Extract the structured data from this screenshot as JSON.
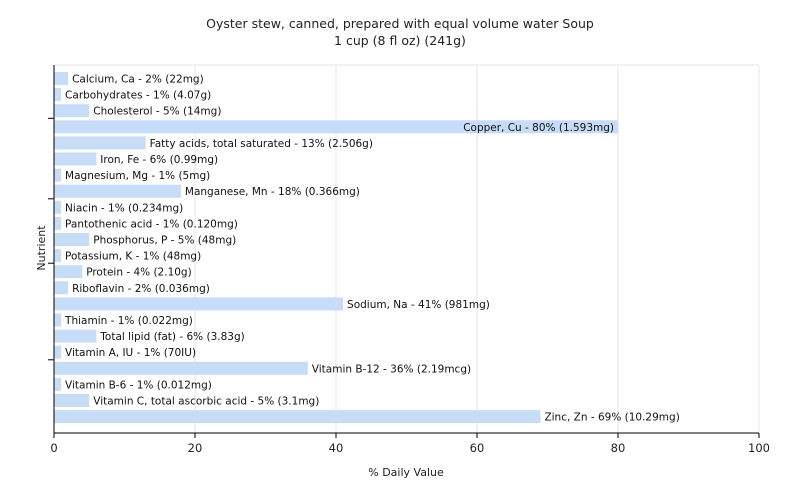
{
  "chart_data": {
    "type": "bar",
    "orientation": "horizontal",
    "title": "Oyster stew, canned, prepared with equal volume water Soup",
    "subtitle": "1 cup (8 fl oz) (241g)",
    "xlabel": "% Daily Value",
    "ylabel": "Nutrient",
    "xlim": [
      0,
      100
    ],
    "xticks": [
      0,
      20,
      40,
      60,
      80,
      100
    ],
    "grid": true,
    "bar_color": "#c6dcf7",
    "categories": [
      "Calcium, Ca",
      "Carbohydrates",
      "Cholesterol",
      "Copper, Cu",
      "Fatty acids, total saturated",
      "Iron, Fe",
      "Magnesium, Mg",
      "Manganese, Mn",
      "Niacin",
      "Pantothenic acid",
      "Phosphorus, P",
      "Potassium, K",
      "Protein",
      "Riboflavin",
      "Sodium, Na",
      "Thiamin",
      "Total lipid (fat)",
      "Vitamin A, IU",
      "Vitamin B-12",
      "Vitamin B-6",
      "Vitamin C, total ascorbic acid",
      "Zinc, Zn"
    ],
    "values": [
      2,
      1,
      5,
      80,
      13,
      6,
      1,
      18,
      1,
      1,
      5,
      1,
      4,
      2,
      41,
      1,
      6,
      1,
      36,
      1,
      5,
      69
    ],
    "labels": [
      "Calcium, Ca - 2% (22mg)",
      "Carbohydrates - 1% (4.07g)",
      "Cholesterol - 5% (14mg)",
      "Copper, Cu - 80% (1.593mg)",
      "Fatty acids, total saturated - 13% (2.506g)",
      "Iron, Fe - 6% (0.99mg)",
      "Magnesium, Mg - 1% (5mg)",
      "Manganese, Mn - 18% (0.366mg)",
      "Niacin - 1% (0.234mg)",
      "Pantothenic acid - 1% (0.120mg)",
      "Phosphorus, P - 5% (48mg)",
      "Potassium, K - 1% (48mg)",
      "Protein - 4% (2.10g)",
      "Riboflavin - 2% (0.036mg)",
      "Sodium, Na - 41% (981mg)",
      "Thiamin - 1% (0.022mg)",
      "Total lipid (fat) - 6% (3.83g)",
      "Vitamin A, IU - 1% (70IU)",
      "Vitamin B-12 - 36% (2.19mcg)",
      "Vitamin B-6 - 1% (0.012mg)",
      "Vitamin C, total ascorbic acid - 5% (3.1mg)",
      "Zinc, Zn - 69% (10.29mg)"
    ]
  }
}
